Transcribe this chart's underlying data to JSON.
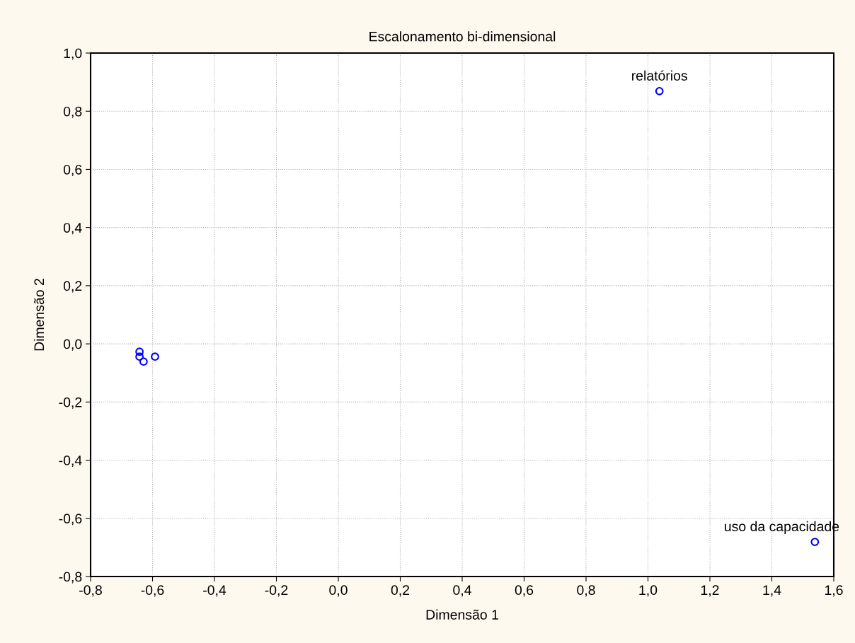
{
  "chart_data": {
    "type": "scatter",
    "title": "Escalonamento bi-dimensional",
    "xlabel": "Dimensão 1",
    "ylabel": "Dimensão 2",
    "x": [
      1.037,
      1.539,
      -0.642,
      -0.642,
      -0.629,
      -0.592
    ],
    "series": [
      {
        "color": "#0000ff",
        "values": [
          0.869,
          -0.681,
          -0.027,
          -0.044,
          -0.061,
          -0.044
        ]
      }
    ],
    "annotations": [
      {
        "text": "relatórios",
        "x": 1.037,
        "y": 0.869
      },
      {
        "text": "uso da capacidade",
        "x": 1.539,
        "y": -0.681
      }
    ],
    "xlim": [
      -0.8,
      1.6
    ],
    "xticks": [
      {
        "value": -0.8,
        "label": "-0,8"
      },
      {
        "value": -0.6,
        "label": "-0,6"
      },
      {
        "value": -0.4,
        "label": "-0,4"
      },
      {
        "value": -0.2,
        "label": "-0,2"
      },
      {
        "value": 0,
        "label": "0,0"
      },
      {
        "value": 0.2,
        "label": "0,2"
      },
      {
        "value": 0.4,
        "label": "0,4"
      },
      {
        "value": 0.6,
        "label": "0,6"
      },
      {
        "value": 0.8,
        "label": "0,8"
      },
      {
        "value": 1.0,
        "label": "1,0"
      },
      {
        "value": 1.2,
        "label": "1,2"
      },
      {
        "value": 1.4,
        "label": "1,4"
      },
      {
        "value": 1.6,
        "label": "1,6"
      }
    ],
    "ylim": [
      -0.8,
      1.0
    ],
    "yticks": [
      {
        "value": -0.8,
        "label": "-0,8"
      },
      {
        "value": -0.6,
        "label": "-0,6"
      },
      {
        "value": -0.4,
        "label": "-0,4"
      },
      {
        "value": -0.2,
        "label": "-0,2"
      },
      {
        "value": 0,
        "label": "0,0"
      },
      {
        "value": 0.2,
        "label": "0,2"
      },
      {
        "value": 0.4,
        "label": "0,4"
      },
      {
        "value": 0.6,
        "label": "0,6"
      },
      {
        "value": 0.8,
        "label": "0,8"
      },
      {
        "value": 1.0,
        "label": "1,0"
      }
    ],
    "grid": true,
    "marker": "circle"
  }
}
